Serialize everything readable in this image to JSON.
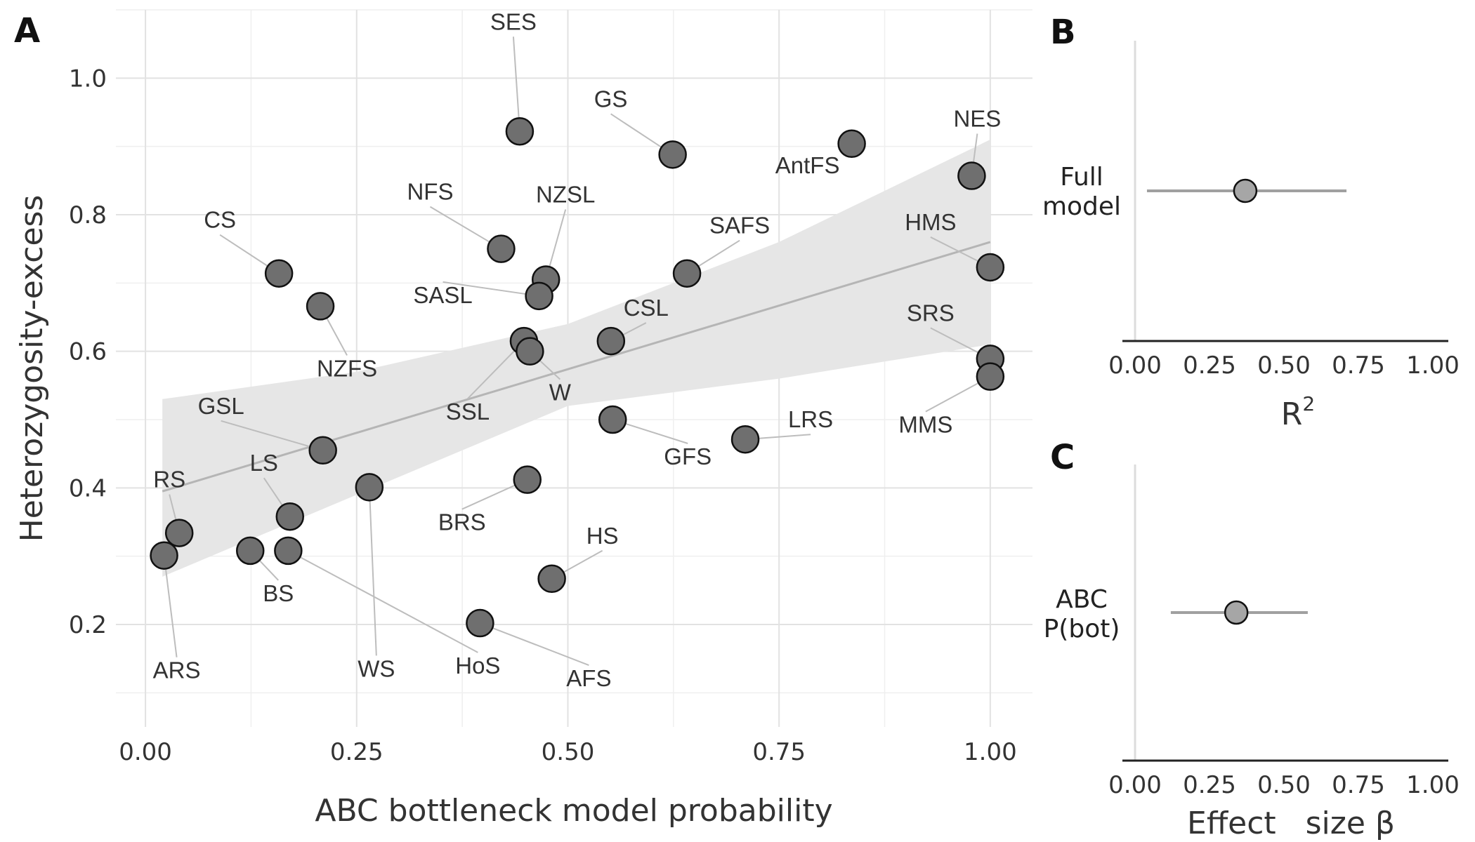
{
  "chart_data": [
    {
      "panel": "A",
      "type": "scatter",
      "xlabel": "ABC bottleneck model probability",
      "ylabel": "Heterozygosity-excess",
      "xlim": [
        -0.035,
        1.05
      ],
      "ylim": [
        0.05,
        1.1
      ],
      "xticks": [
        "0.00",
        "0.25",
        "0.50",
        "0.75",
        "1.00"
      ],
      "yticks": [
        "0.2",
        "0.4",
        "0.6",
        "0.8",
        "1.0"
      ],
      "grid": true,
      "fit": {
        "x": [
          0.02,
          1.0
        ],
        "y": [
          0.395,
          0.76
        ]
      },
      "ci": {
        "x": [
          0.02,
          0.25,
          0.5,
          0.75,
          1.0
        ],
        "upper": [
          0.53,
          0.57,
          0.64,
          0.76,
          0.91
        ],
        "lower": [
          0.27,
          0.39,
          0.52,
          0.56,
          0.61
        ]
      },
      "points": [
        {
          "label": "SES",
          "x": 0.443,
          "y": 0.922
        },
        {
          "label": "GS",
          "x": 0.624,
          "y": 0.888
        },
        {
          "label": "AntFS",
          "x": 0.836,
          "y": 0.904
        },
        {
          "label": "NES",
          "x": 0.978,
          "y": 0.857
        },
        {
          "label": "NFS",
          "x": 0.421,
          "y": 0.75
        },
        {
          "label": "NZSL",
          "x": 0.474,
          "y": 0.705
        },
        {
          "label": "CS",
          "x": 0.158,
          "y": 0.714
        },
        {
          "label": "NZFS",
          "x": 0.207,
          "y": 0.666
        },
        {
          "label": "SAFS",
          "x": 0.641,
          "y": 0.714
        },
        {
          "label": "HMS",
          "x": 1.0,
          "y": 0.723
        },
        {
          "label": "SASL",
          "x": 0.466,
          "y": 0.681
        },
        {
          "label": "CSL",
          "x": 0.551,
          "y": 0.615
        },
        {
          "label": "SSL",
          "x": 0.448,
          "y": 0.615
        },
        {
          "label": "W",
          "x": 0.455,
          "y": 0.6
        },
        {
          "label": "SRS",
          "x": 1.0,
          "y": 0.589
        },
        {
          "label": "MMS",
          "x": 1.0,
          "y": 0.563
        },
        {
          "label": "GSL",
          "x": 0.21,
          "y": 0.455
        },
        {
          "label": "GFS",
          "x": 0.553,
          "y": 0.5
        },
        {
          "label": "LRS",
          "x": 0.71,
          "y": 0.471
        },
        {
          "label": "BRS",
          "x": 0.452,
          "y": 0.412
        },
        {
          "label": "LS",
          "x": 0.171,
          "y": 0.358
        },
        {
          "label": "RS",
          "x": 0.04,
          "y": 0.334
        },
        {
          "label": "WS",
          "x": 0.265,
          "y": 0.401
        },
        {
          "label": "ARS",
          "x": 0.022,
          "y": 0.301
        },
        {
          "label": "BS",
          "x": 0.124,
          "y": 0.308
        },
        {
          "label": "HoS",
          "x": 0.169,
          "y": 0.308
        },
        {
          "label": "HS",
          "x": 0.481,
          "y": 0.267
        },
        {
          "label": "AFS",
          "x": 0.396,
          "y": 0.202
        }
      ]
    },
    {
      "panel": "B",
      "type": "scatter",
      "xlabel": "R",
      "xlabel_sup": "2",
      "xlim": [
        -0.08,
        1.08
      ],
      "xticks": [
        "0.00",
        "0.25",
        "0.50",
        "0.75",
        "1.00"
      ],
      "rows": [
        {
          "label_lines": [
            "Full",
            "model"
          ],
          "estimate": 0.37,
          "lower": 0.04,
          "upper": 0.71
        }
      ]
    },
    {
      "panel": "C",
      "type": "scatter",
      "xlabel": "Effect   size β",
      "xlim": [
        -0.08,
        1.08
      ],
      "xticks": [
        "0.00",
        "0.25",
        "0.50",
        "0.75",
        "1.00"
      ],
      "rows": [
        {
          "label_lines": [
            "ABC",
            "P(bot)"
          ],
          "estimate": 0.34,
          "lower": 0.12,
          "upper": 0.58
        }
      ]
    }
  ],
  "colors": {
    "point_fill_A": "#6f6f6f",
    "point_fill_BC": "#a6a6a6",
    "ribbon": "#e6e6e6",
    "fit_line": "#b5b5b5",
    "interval_line": "#a0a0a0",
    "leader": "#bdbdbd"
  }
}
